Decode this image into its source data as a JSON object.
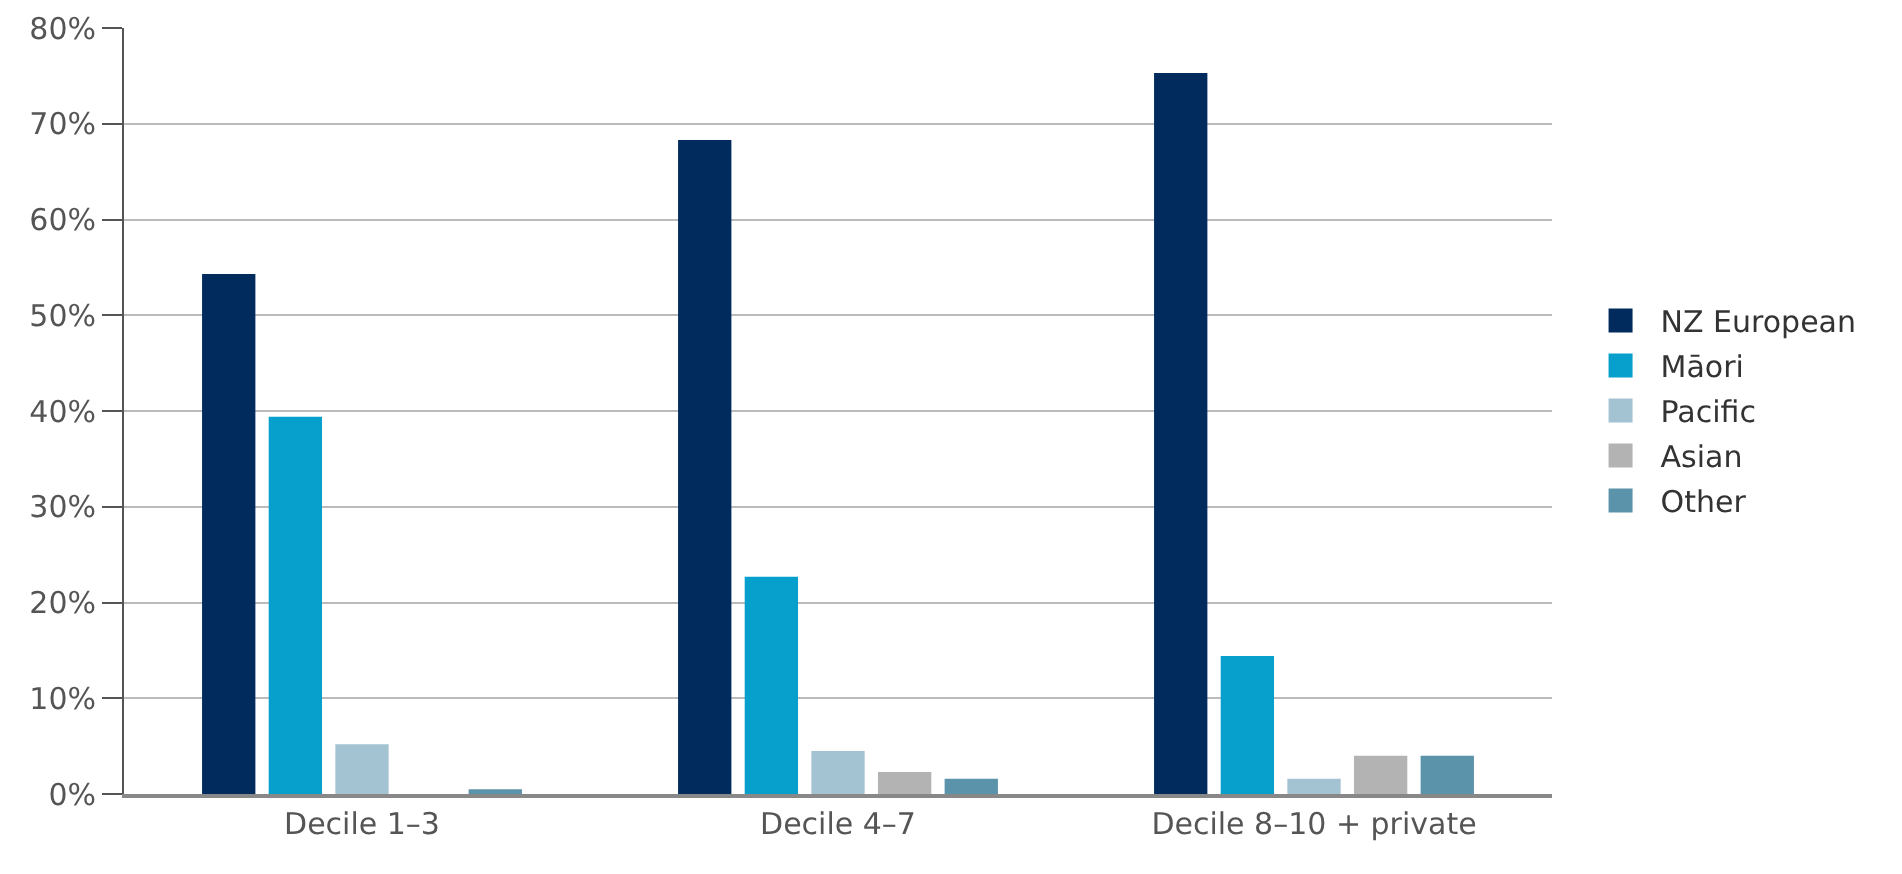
{
  "chart_data": {
    "type": "bar",
    "categories": [
      "Decile 1–3",
      "Decile 4–7",
      "Decile 8–10 + private"
    ],
    "series": [
      {
        "name": "NZ European",
        "color": "#002b5c",
        "values": [
          54.3,
          68.3,
          75.3
        ]
      },
      {
        "name": "Māori",
        "color": "#079fcb",
        "values": [
          39.4,
          22.7,
          14.4
        ]
      },
      {
        "name": "Pacific",
        "color": "#a3c3d3",
        "values": [
          5.2,
          4.5,
          1.6
        ]
      },
      {
        "name": "Asian",
        "color": "#b3b3b3",
        "values": [
          0,
          2.3,
          4.0
        ]
      },
      {
        "name": "Other",
        "color": "#5b93ab",
        "values": [
          0.5,
          1.6,
          4.0
        ]
      }
    ],
    "ylim": [
      0,
      80
    ],
    "yticks": [
      {
        "value": 0,
        "label": "0%"
      },
      {
        "value": 10,
        "label": "10%"
      },
      {
        "value": 20,
        "label": "20%"
      },
      {
        "value": 30,
        "label": "30%"
      },
      {
        "value": 40,
        "label": "40%"
      },
      {
        "value": 50,
        "label": "50%"
      },
      {
        "value": 60,
        "label": "60%"
      },
      {
        "value": 70,
        "label": "70%"
      },
      {
        "value": 80,
        "label": "80%"
      }
    ],
    "grid": "y",
    "legend": "right"
  }
}
